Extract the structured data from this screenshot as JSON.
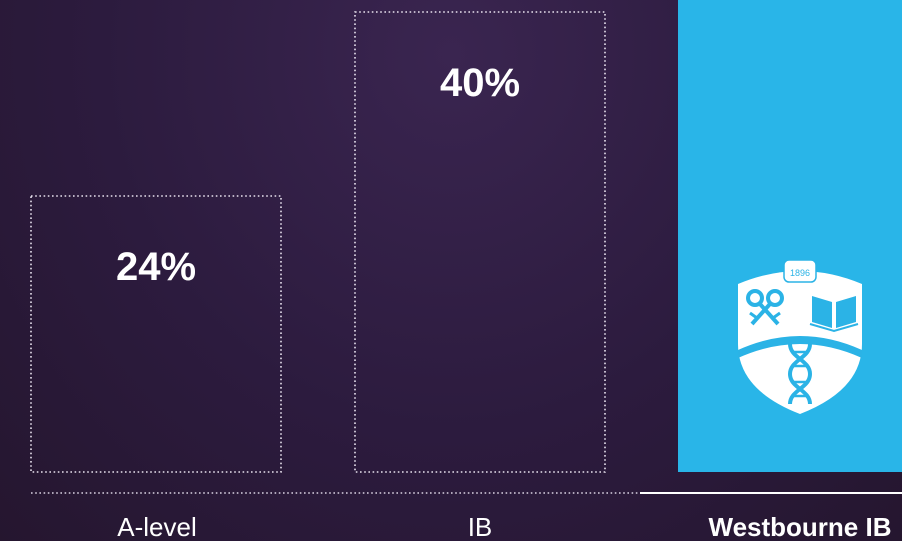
{
  "chart_data": {
    "type": "bar",
    "categories": [
      "A-level",
      "IB",
      "Westbourne IB"
    ],
    "values": [
      24,
      40,
      null
    ],
    "value_labels": [
      "24%",
      "40%",
      ""
    ],
    "highlight_index": 2,
    "ylim": [
      0,
      60
    ],
    "title": "",
    "xlabel": "",
    "ylabel": "",
    "grid": false,
    "colors": {
      "outline": "#e8e2ee",
      "highlight_fill": "#29b5e8",
      "text": "#ffffff",
      "background": "#2c1b3e"
    }
  },
  "crest": {
    "year": "1896",
    "icons": [
      "keys-icon",
      "book-icon",
      "dna-icon"
    ]
  }
}
